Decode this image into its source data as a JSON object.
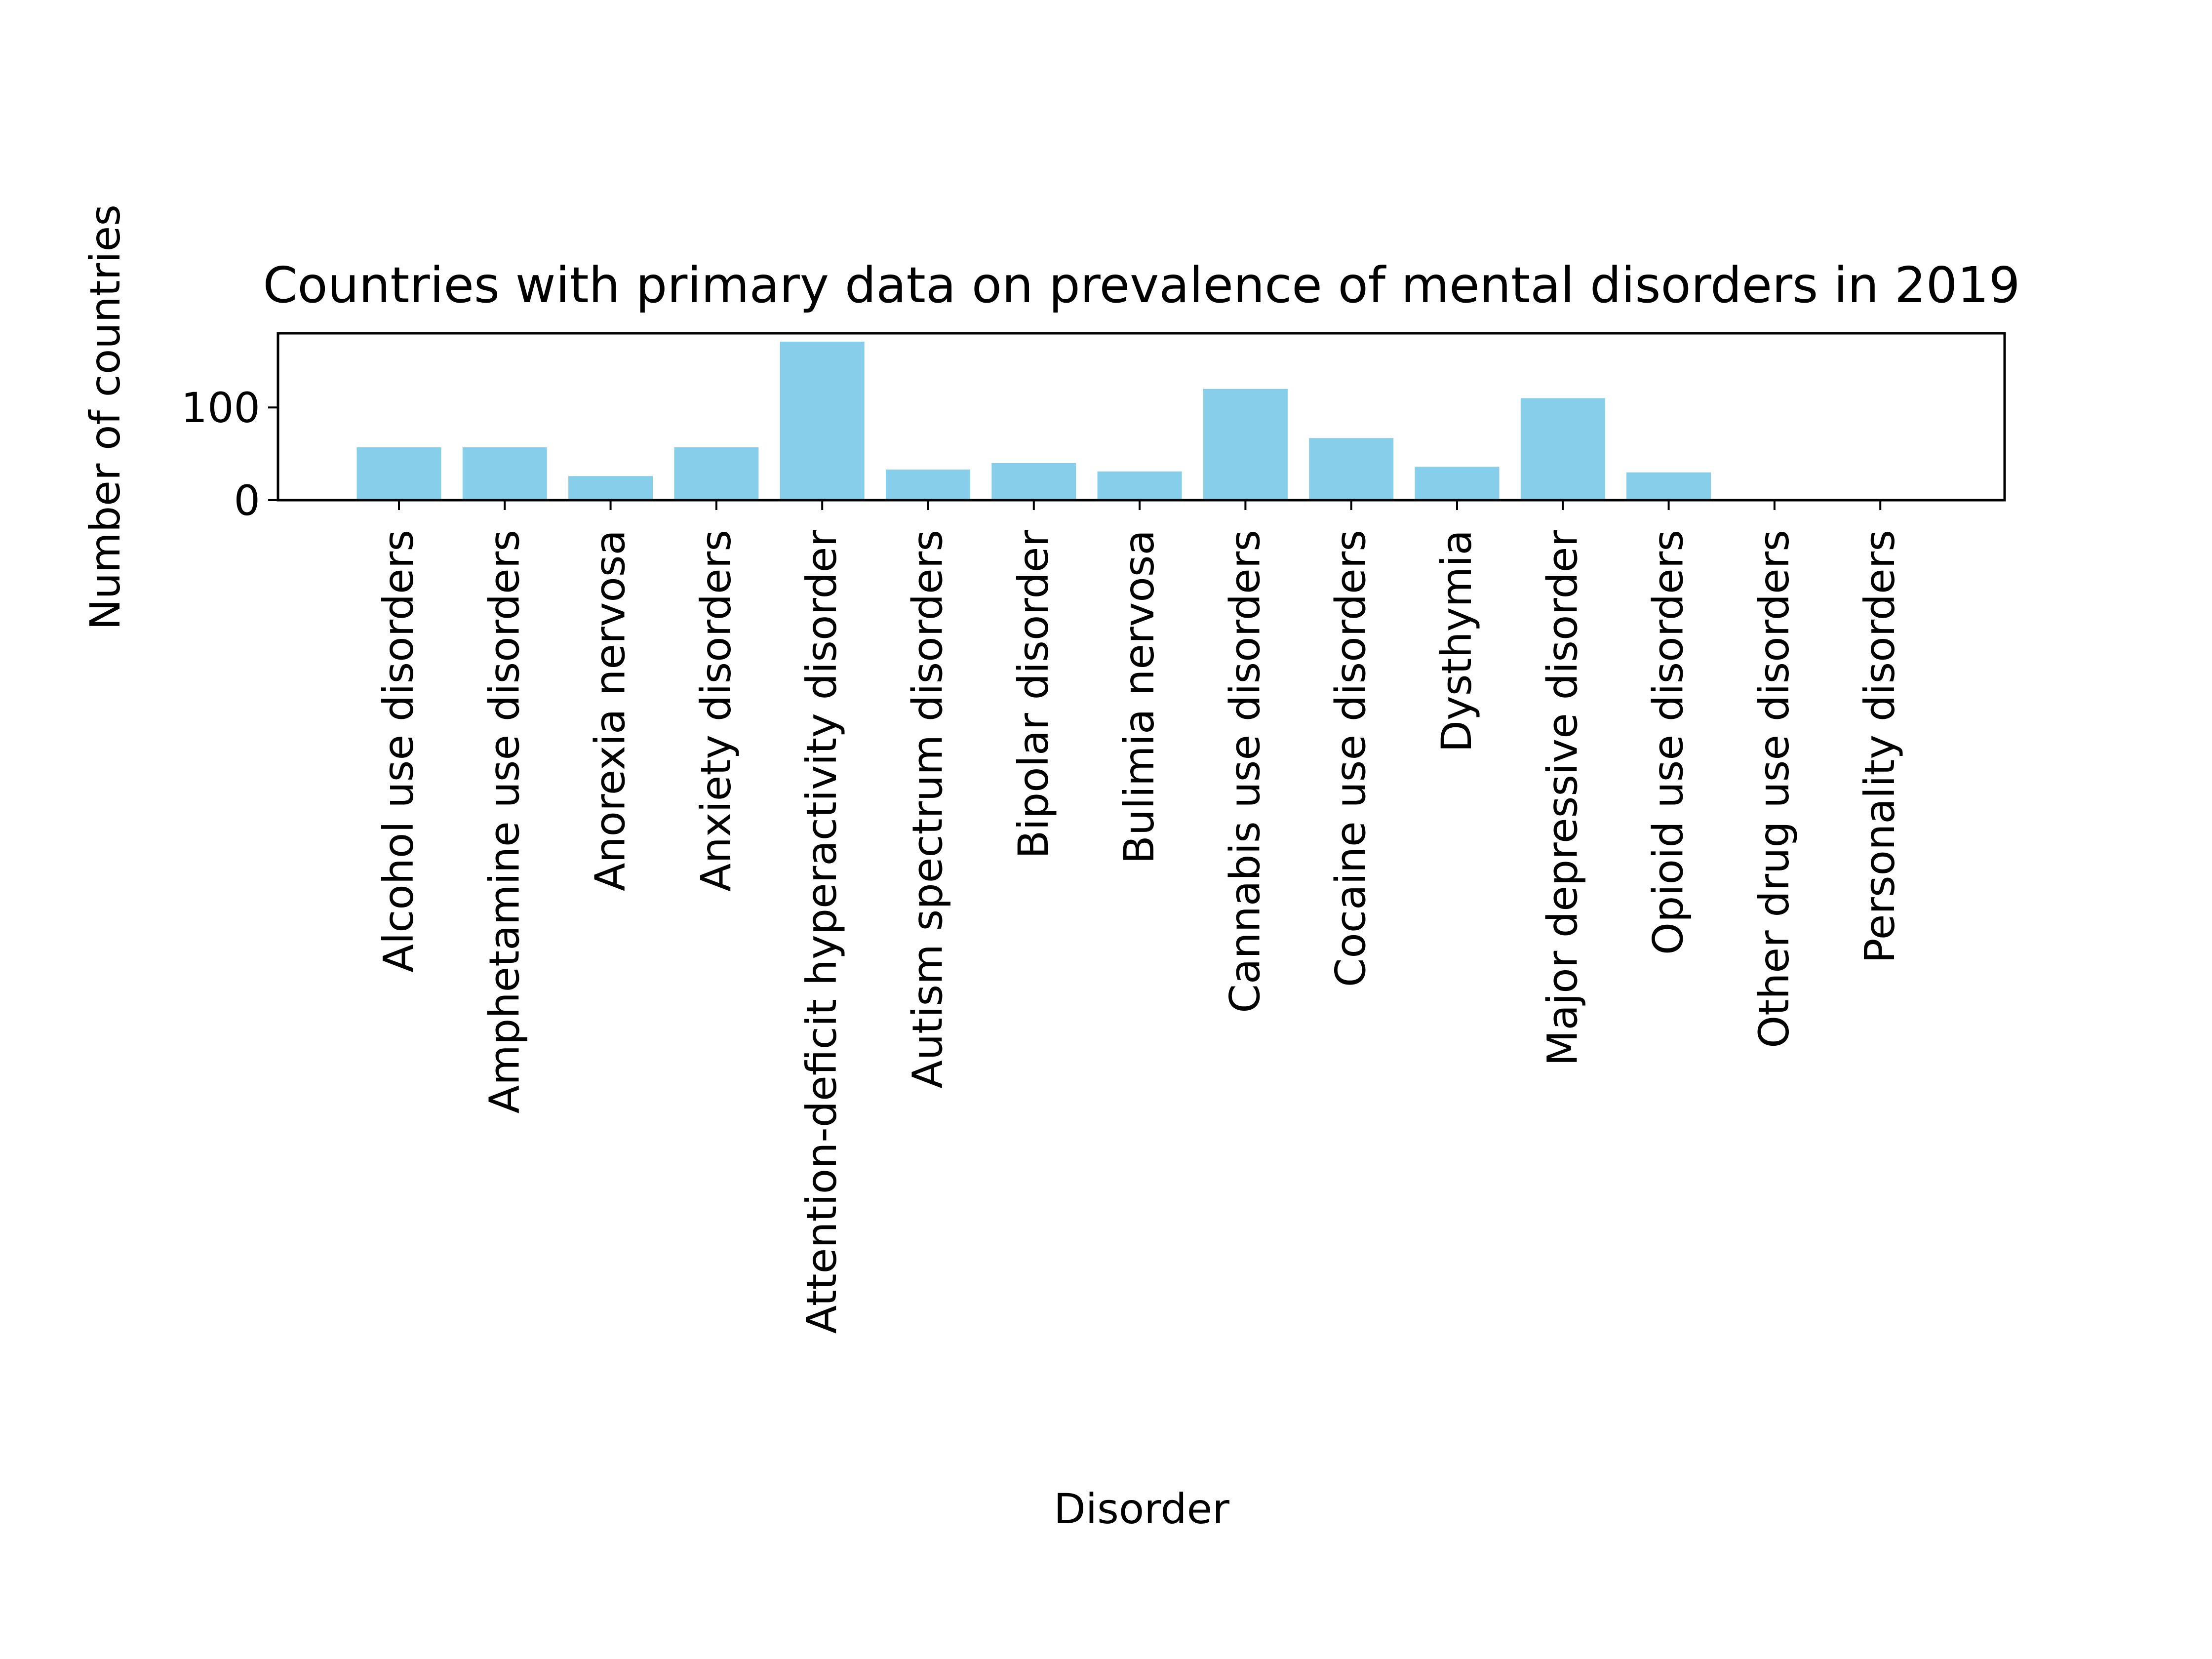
{
  "chart_data": {
    "type": "bar",
    "title": "Countries with primary data on prevalence of mental disorders in 2019",
    "xlabel": "Disorder",
    "ylabel": "Number of countries",
    "categories": [
      "Alcohol use disorders",
      "Amphetamine use disorders",
      "Anorexia nervosa",
      "Anxiety disorders",
      "Attention-deficit hyperactivity disorder",
      "Autism spectrum disorders",
      "Bipolar disorder",
      "Bulimia nervosa",
      "Cannabis use disorders",
      "Cocaine use disorders",
      "Dysthymia",
      "Major depressive disorder",
      "Opioid use disorders",
      "Other drug use disorders",
      "Personality disorders"
    ],
    "values": [
      57,
      57,
      26,
      57,
      171,
      33,
      40,
      31,
      120,
      67,
      36,
      110,
      30,
      0,
      0
    ],
    "yticks": [
      0,
      100
    ],
    "ylim": [
      0,
      180
    ],
    "grid": false,
    "bar_color": "#87ceeb"
  }
}
